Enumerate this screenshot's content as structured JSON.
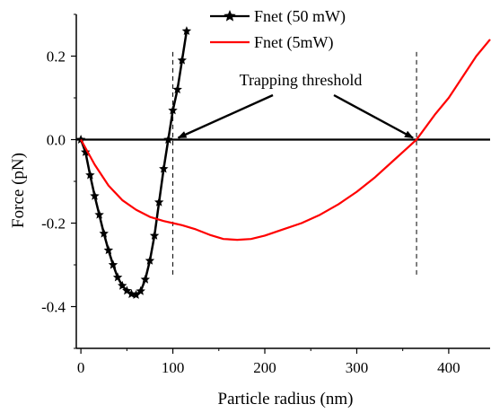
{
  "chart_data": {
    "type": "line",
    "title": "",
    "xlabel": "Particle radius (nm)",
    "ylabel": "Force (pN)",
    "xlim": [
      -5,
      445
    ],
    "ylim": [
      -0.5,
      0.3
    ],
    "x_ticks": [
      0,
      100,
      200,
      300,
      400
    ],
    "y_ticks": [
      -0.4,
      -0.2,
      0.0,
      0.2
    ],
    "x_tick_labels": [
      "0",
      "100",
      "200",
      "300",
      "400"
    ],
    "y_tick_labels": [
      "-0.4",
      "-0.2",
      "0.0",
      "0.2"
    ],
    "grid": false,
    "legend_position": "top-center",
    "series": [
      {
        "name": "Fnet (50 mW)",
        "color": "#000000",
        "marker": "star",
        "x": [
          0,
          5,
          10,
          15,
          20,
          25,
          30,
          35,
          40,
          45,
          50,
          55,
          60,
          65,
          70,
          75,
          80,
          85,
          90,
          95,
          100,
          105,
          110,
          115
        ],
        "y": [
          0.0,
          -0.03,
          -0.085,
          -0.135,
          -0.18,
          -0.225,
          -0.265,
          -0.3,
          -0.33,
          -0.35,
          -0.362,
          -0.37,
          -0.372,
          -0.363,
          -0.335,
          -0.29,
          -0.23,
          -0.15,
          -0.07,
          0.0,
          0.07,
          0.12,
          0.19,
          0.26
        ]
      },
      {
        "name": "Fnet (5mW)",
        "color": "#ff0000",
        "marker": "none",
        "x": [
          0,
          15,
          30,
          45,
          60,
          75,
          90,
          100,
          110,
          125,
          140,
          155,
          170,
          185,
          200,
          220,
          240,
          260,
          280,
          300,
          320,
          340,
          355,
          365,
          375,
          385,
          400,
          415,
          430,
          445
        ],
        "y": [
          0.0,
          -0.06,
          -0.11,
          -0.145,
          -0.168,
          -0.185,
          -0.195,
          -0.2,
          -0.205,
          -0.215,
          -0.228,
          -0.238,
          -0.24,
          -0.238,
          -0.23,
          -0.215,
          -0.2,
          -0.18,
          -0.155,
          -0.125,
          -0.09,
          -0.05,
          -0.02,
          0.0,
          0.03,
          0.06,
          0.1,
          0.15,
          0.2,
          0.24
        ]
      }
    ],
    "zero_line": {
      "y": 0,
      "color": "#000000"
    },
    "thresholds": [
      {
        "x": 100,
        "style": "dashed"
      },
      {
        "x": 365,
        "style": "dashed"
      }
    ],
    "annotation": {
      "text": "Trapping threshold",
      "arrow_targets": [
        {
          "x": 100,
          "y": 0.0
        },
        {
          "x": 365,
          "y": 0.0
        }
      ]
    }
  }
}
